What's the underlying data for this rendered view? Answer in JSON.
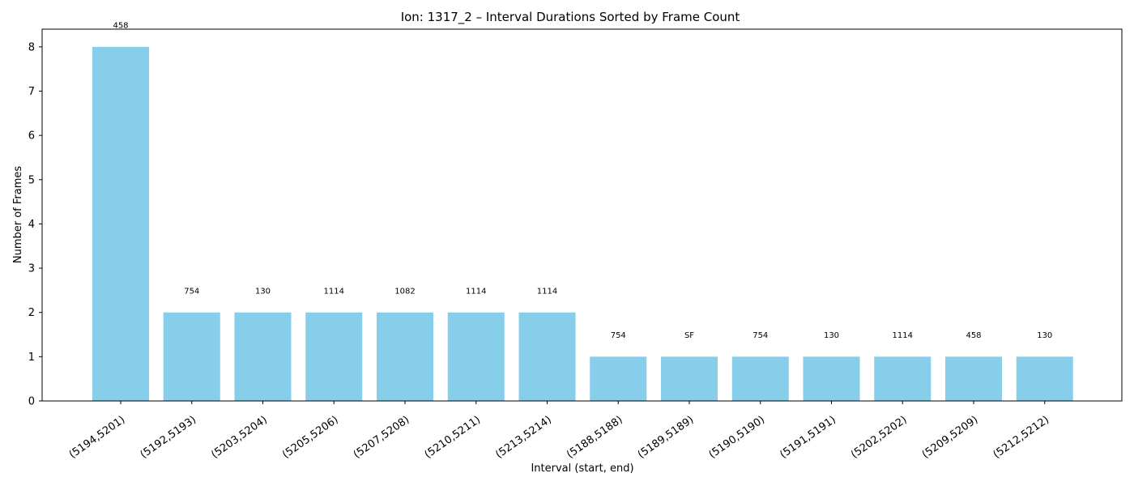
{
  "chart_data": {
    "type": "bar",
    "title": "Ion: 1317_2 – Interval Durations Sorted by Frame Count",
    "xlabel": "Interval (start, end)",
    "ylabel": "Number of Frames",
    "categories": [
      "(5194,5201)",
      "(5192,5193)",
      "(5203,5204)",
      "(5205,5206)",
      "(5207,5208)",
      "(5210,5211)",
      "(5213,5214)",
      "(5188,5188)",
      "(5189,5189)",
      "(5190,5190)",
      "(5191,5191)",
      "(5202,5202)",
      "(5209,5209)",
      "(5212,5212)"
    ],
    "values": [
      8,
      2,
      2,
      2,
      2,
      2,
      2,
      1,
      1,
      1,
      1,
      1,
      1,
      1
    ],
    "bar_labels": [
      "458",
      "754",
      "130",
      "1114",
      "1082",
      "1114",
      "1114",
      "754",
      "SF",
      "754",
      "130",
      "1114",
      "458",
      "130"
    ],
    "ylim": [
      0,
      8.4
    ],
    "yticks": [
      "0",
      "1",
      "2",
      "3",
      "4",
      "5",
      "6",
      "7",
      "8"
    ],
    "bar_color": "#87ceeb",
    "grid": false,
    "legend": "none"
  }
}
